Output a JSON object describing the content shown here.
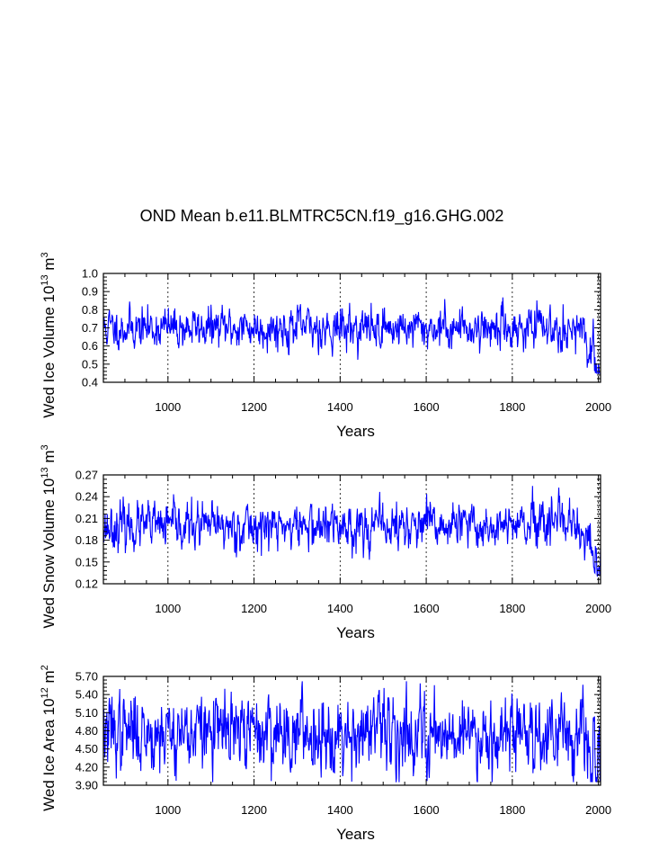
{
  "chart_data": {
    "title": "OND Mean b.e11.BLMTRC5CN.f19_g16.GHG.002",
    "panels": [
      {
        "type": "line",
        "series": [
          {
            "name": "Wed Ice Volume",
            "color": "#0000ff",
            "start_year": 850,
            "end_year": 2005,
            "mean": 0.7,
            "std": 0.05,
            "trend_end": 0.45,
            "min": 0.45,
            "max": 0.91
          }
        ],
        "ylabel_base": "Wed Ice Volume 10",
        "ylabel_exp": "13",
        "ylabel_unit": " m",
        "ylabel_unit_exp": "3",
        "xlabel": "Years",
        "xlim": [
          850,
          2005
        ],
        "ylim": [
          0.4,
          1.0
        ],
        "yticks": [
          0.4,
          0.5,
          0.6,
          0.7,
          0.8,
          0.9,
          1.0
        ],
        "ytick_labels": [
          "0.4",
          "0.5",
          "0.6",
          "0.7",
          "0.8",
          "0.9",
          "1.0"
        ],
        "xticks": [
          1000,
          1200,
          1400,
          1600,
          1800,
          2000
        ],
        "xtick_labels": [
          "1000",
          "1200",
          "1400",
          "1600",
          "1800",
          "2000"
        ],
        "grid_x": true
      },
      {
        "type": "line",
        "series": [
          {
            "name": "Wed Snow Volume",
            "color": "#0000ff",
            "start_year": 850,
            "end_year": 2005,
            "mean": 0.199,
            "std": 0.014,
            "trend_end": 0.135,
            "min": 0.13,
            "max": 0.266
          }
        ],
        "ylabel_base": "Wed Snow Volume 10",
        "ylabel_exp": "13",
        "ylabel_unit": " m",
        "ylabel_unit_exp": "3",
        "xlabel": "Years",
        "xlim": [
          850,
          2005
        ],
        "ylim": [
          0.12,
          0.27
        ],
        "yticks": [
          0.12,
          0.15,
          0.18,
          0.21,
          0.24,
          0.27
        ],
        "ytick_labels": [
          "0.12",
          "0.15",
          "0.18",
          "0.21",
          "0.24",
          "0.27"
        ],
        "xticks": [
          1000,
          1200,
          1400,
          1600,
          1800,
          2000
        ],
        "xtick_labels": [
          "1000",
          "1200",
          "1400",
          "1600",
          "1800",
          "2000"
        ],
        "grid_x": true
      },
      {
        "type": "line",
        "series": [
          {
            "name": "Wed Ice Area",
            "color": "#0000ff",
            "start_year": 850,
            "end_year": 2005,
            "mean": 4.78,
            "std": 0.28,
            "trend_end": 4.15,
            "min": 3.95,
            "max": 5.62
          }
        ],
        "ylabel_base": "Wed Ice Area 10",
        "ylabel_exp": "12",
        "ylabel_unit": " m",
        "ylabel_unit_exp": "2",
        "xlabel": "Years",
        "xlim": [
          850,
          2005
        ],
        "ylim": [
          3.9,
          5.7
        ],
        "yticks": [
          3.9,
          4.2,
          4.5,
          4.8,
          5.1,
          5.4,
          5.7
        ],
        "ytick_labels": [
          "3.90",
          "4.20",
          "4.50",
          "4.80",
          "5.10",
          "5.40",
          "5.70"
        ],
        "xticks": [
          1000,
          1200,
          1400,
          1600,
          1800,
          2000
        ],
        "xtick_labels": [
          "1000",
          "1200",
          "1400",
          "1600",
          "1800",
          "2000"
        ],
        "grid_x": true
      }
    ]
  }
}
